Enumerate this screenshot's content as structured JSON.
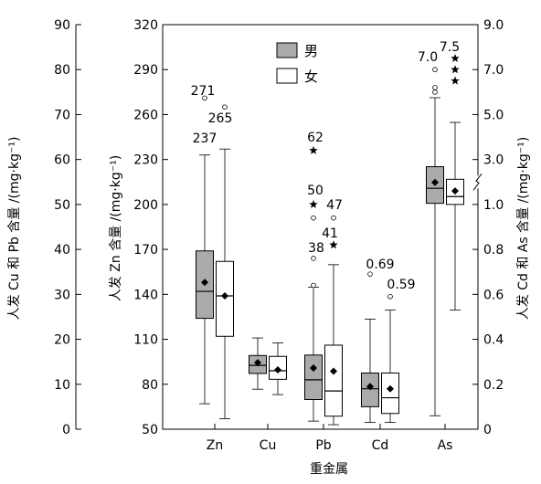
{
  "chart_data": {
    "type": "boxplot",
    "xlabel": "重金属",
    "categories": [
      "Zn",
      "Cu",
      "Pb",
      "Cd",
      "As"
    ],
    "legend": {
      "placement": "top-center",
      "items": [
        {
          "name": "男",
          "color": "#aaaaaa"
        },
        {
          "name": "女",
          "color": "#ffffff"
        }
      ]
    },
    "axes": {
      "left_outer": {
        "label": "人发 Cu 和 Pb 含量 /(mg·kg⁻¹)",
        "ticks": [
          "0",
          "10",
          "20",
          "30",
          "40",
          "50",
          "60",
          "70",
          "80",
          "90"
        ],
        "range": [
          0,
          90
        ]
      },
      "left_inner": {
        "label": "人发 Zn 含量 /(mg·kg⁻¹)",
        "ticks": [
          "50",
          "80",
          "110",
          "140",
          "170",
          "200",
          "230",
          "260",
          "290",
          "320"
        ],
        "range": [
          50,
          320
        ]
      },
      "right": {
        "label": "人发 Cd 和 As 含量 /(mg·kg⁻¹)",
        "ticks": [
          "0",
          "0.2",
          "0.4",
          "0.6",
          "0.8",
          "1.0",
          "3.0",
          "5.0",
          "7.0",
          "9.0"
        ],
        "range": [
          0,
          9.0
        ],
        "break_between": [
          "1.0",
          "3.0"
        ]
      }
    },
    "series": [
      {
        "name": "男",
        "boxes": [
          {
            "category": "Zn",
            "axis": "left_inner",
            "whisker_low": 67,
            "q1": 124,
            "median": 142,
            "q3": 169,
            "whisker_high": 233,
            "mean": 148
          },
          {
            "category": "Cu",
            "axis": "left_outer",
            "whisker_low": 8.9,
            "q1": 12.4,
            "median": 14.2,
            "q3": 16.4,
            "whisker_high": 20.3,
            "mean": 14.8
          },
          {
            "category": "Pb",
            "axis": "left_outer",
            "whisker_low": 1.8,
            "q1": 6.6,
            "median": 11.0,
            "q3": 16.5,
            "whisker_high": 31.6,
            "mean": 13.6
          },
          {
            "category": "Cd",
            "axis": "right",
            "whisker_low": 0.03,
            "q1": 0.1,
            "median": 0.18,
            "q3": 0.25,
            "whisker_high": 0.49,
            "mean": 0.19
          },
          {
            "category": "As",
            "axis": "right",
            "whisker_low": 0.06,
            "q1": 1.05,
            "median": 1.72,
            "q3": 2.68,
            "whisker_high": 5.75,
            "mean": 1.98
          }
        ]
      },
      {
        "name": "女",
        "boxes": [
          {
            "category": "Zn",
            "axis": "left_inner",
            "whisker_low": 57,
            "q1": 112,
            "median": 139,
            "q3": 162,
            "whisker_high": 237,
            "mean": 139
          },
          {
            "category": "Cu",
            "axis": "left_outer",
            "whisker_low": 7.7,
            "q1": 11.1,
            "median": 13.0,
            "q3": 16.2,
            "whisker_high": 19.2,
            "mean": 13.2
          },
          {
            "category": "Pb",
            "axis": "left_outer",
            "whisker_low": 1.0,
            "q1": 2.9,
            "median": 8.5,
            "q3": 18.7,
            "whisker_high": 36.6,
            "mean": 12.9
          },
          {
            "category": "Cd",
            "axis": "right",
            "whisker_low": 0.03,
            "q1": 0.07,
            "median": 0.14,
            "q3": 0.25,
            "whisker_high": 0.53,
            "mean": 0.18
          },
          {
            "category": "As",
            "axis": "right",
            "whisker_low": 0.53,
            "q1": 1.0,
            "median": 1.35,
            "q3": 2.12,
            "whisker_high": 4.65,
            "mean": 1.6
          }
        ]
      }
    ],
    "outliers": [
      {
        "series": "男",
        "category": "Zn",
        "axis": "left_inner",
        "value": 271,
        "marker": "circle"
      },
      {
        "series": "女",
        "category": "Zn",
        "axis": "left_inner",
        "value": 265,
        "marker": "circle"
      },
      {
        "series": "男",
        "category": "Pb",
        "axis": "left_outer",
        "value": 62,
        "marker": "star"
      },
      {
        "series": "男",
        "category": "Pb",
        "axis": "left_outer",
        "value": 50,
        "marker": "star"
      },
      {
        "series": "男",
        "category": "Pb",
        "axis": "left_outer",
        "value": 47,
        "marker": "circle"
      },
      {
        "series": "男",
        "category": "Pb",
        "axis": "left_outer",
        "value": 38,
        "marker": "circle"
      },
      {
        "series": "男",
        "category": "Pb",
        "axis": "left_outer",
        "value": 32,
        "marker": "circle"
      },
      {
        "series": "女",
        "category": "Pb",
        "axis": "left_outer",
        "value": 47,
        "marker": "circle"
      },
      {
        "series": "女",
        "category": "Pb",
        "axis": "left_outer",
        "value": 41,
        "marker": "star"
      },
      {
        "series": "男",
        "category": "Cd",
        "axis": "right",
        "value": 0.69,
        "marker": "circle"
      },
      {
        "series": "女",
        "category": "Cd",
        "axis": "right",
        "value": 0.59,
        "marker": "circle"
      },
      {
        "series": "男",
        "category": "As",
        "axis": "right",
        "value": 7.0,
        "marker": "circle"
      },
      {
        "series": "男",
        "category": "As",
        "axis": "right",
        "value": 6.2,
        "marker": "circle"
      },
      {
        "series": "男",
        "category": "As",
        "axis": "right",
        "value": 6.0,
        "marker": "circle"
      },
      {
        "series": "女",
        "category": "As",
        "axis": "right",
        "value": 7.5,
        "marker": "star"
      },
      {
        "series": "女",
        "category": "As",
        "axis": "right",
        "value": 7.0,
        "marker": "star"
      },
      {
        "series": "女",
        "category": "As",
        "axis": "right",
        "value": 6.5,
        "marker": "star"
      }
    ],
    "annotations": [
      {
        "category": "Zn",
        "axis": "left_inner",
        "value": 271,
        "text": "271"
      },
      {
        "category": "Zn",
        "axis": "left_inner",
        "value": 265,
        "text": "265"
      },
      {
        "category": "Zn",
        "axis": "left_inner",
        "value": 237,
        "text": "237"
      },
      {
        "category": "Pb",
        "axis": "left_outer",
        "value": 62,
        "text": "62"
      },
      {
        "category": "Pb",
        "axis": "left_outer",
        "value": 50,
        "text": "50"
      },
      {
        "category": "Pb",
        "axis": "left_outer",
        "value": 47,
        "text": "47"
      },
      {
        "category": "Pb",
        "axis": "left_outer",
        "value": 41,
        "text": "41"
      },
      {
        "category": "Pb",
        "axis": "left_outer",
        "value": 38,
        "text": "38"
      },
      {
        "category": "Cd",
        "axis": "right",
        "value": 0.69,
        "text": "0.69"
      },
      {
        "category": "Cd",
        "axis": "right",
        "value": 0.59,
        "text": "0.59"
      },
      {
        "category": "As",
        "axis": "right",
        "value": 7.0,
        "text": "7.0"
      },
      {
        "category": "As",
        "axis": "right",
        "value": 7.5,
        "text": "7.5"
      }
    ]
  }
}
